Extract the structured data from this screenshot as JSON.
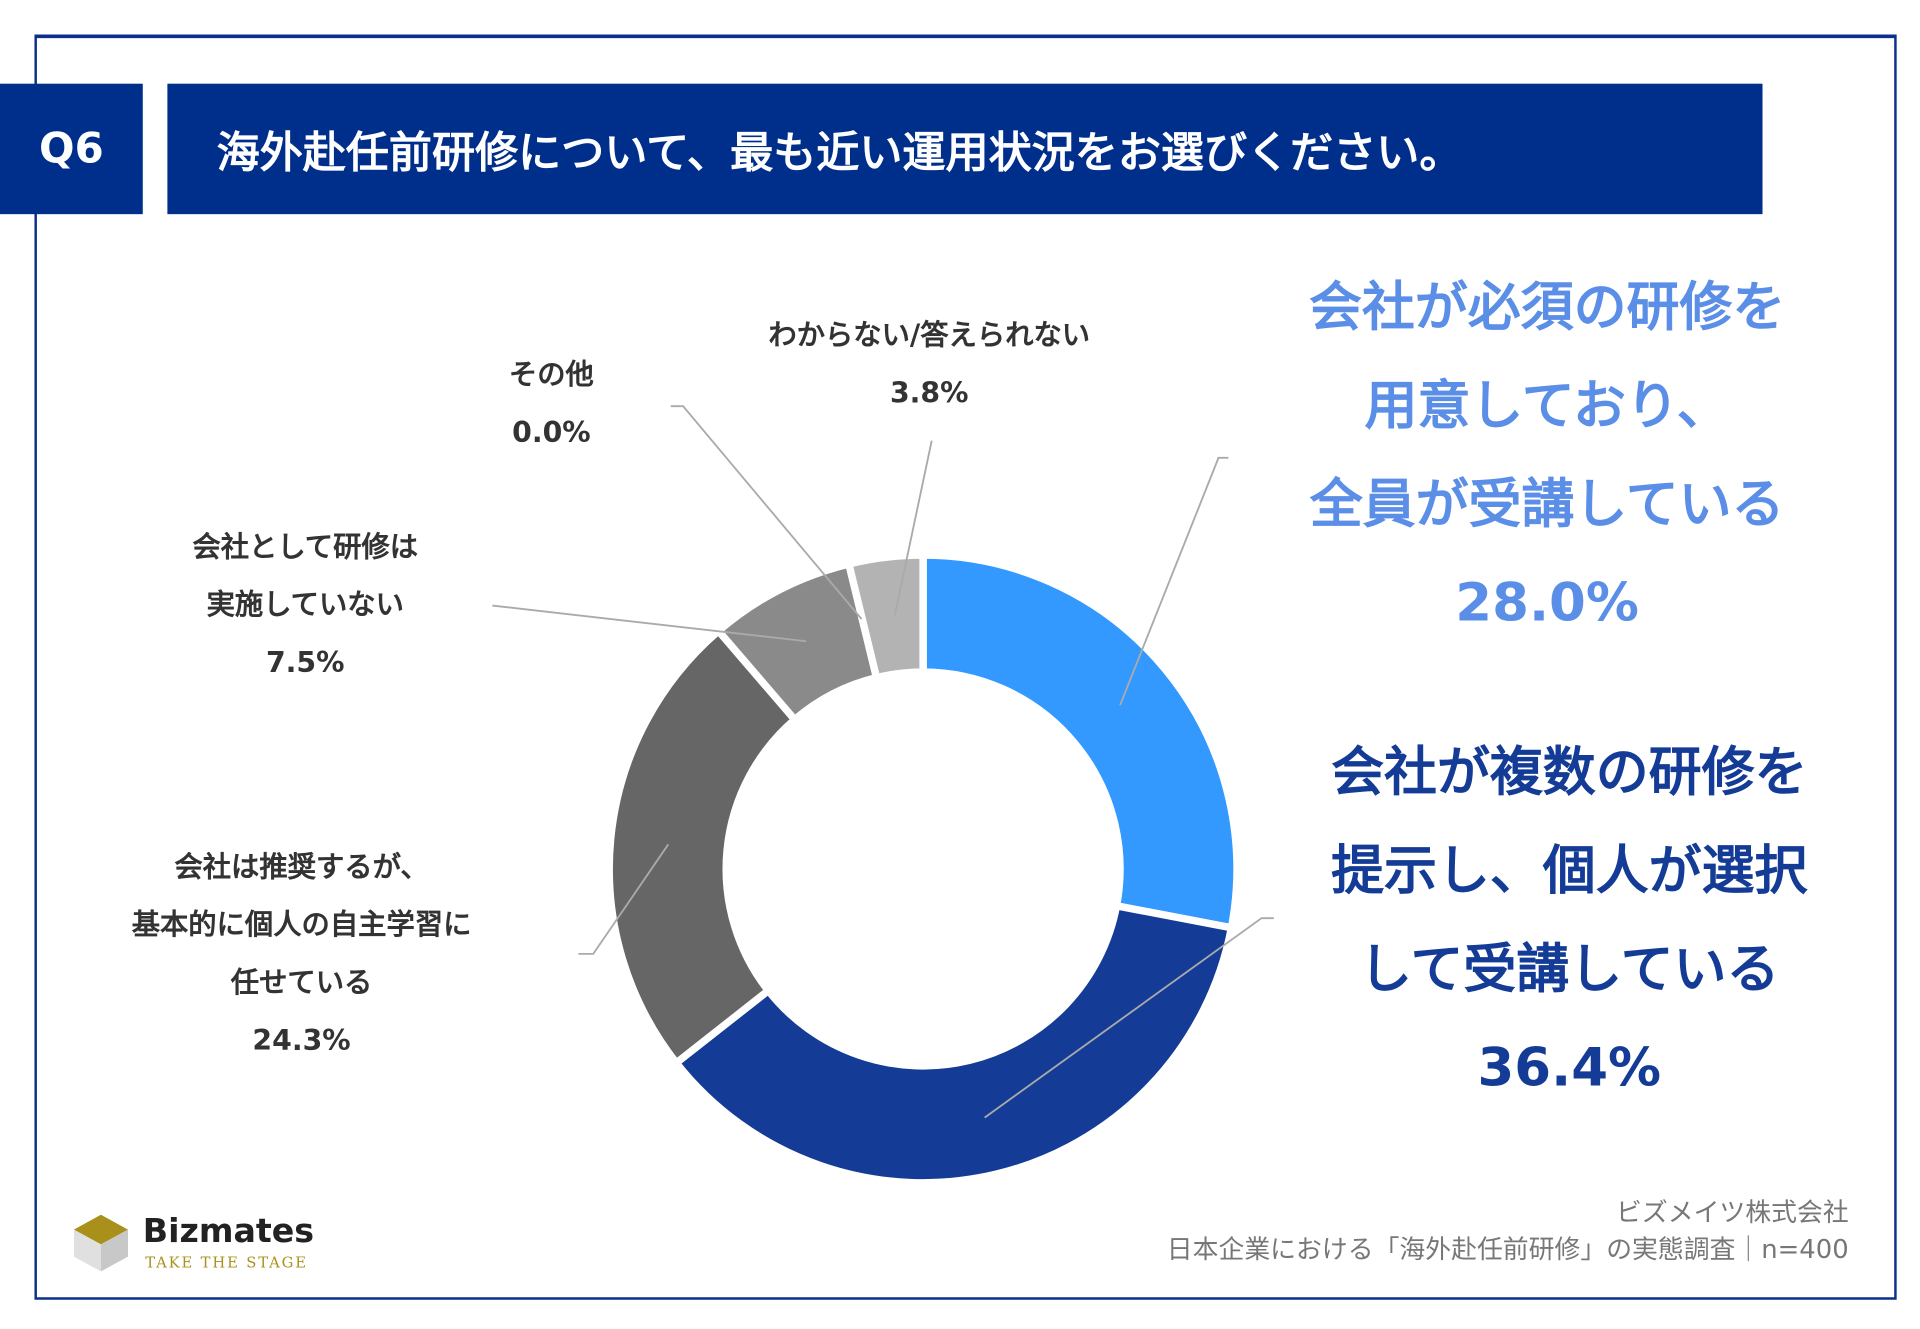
{
  "question_number": "Q6",
  "title": "海外赴任前研修について、最も近い運用状況をお選びください。",
  "chart_data": {
    "type": "pie",
    "donut": true,
    "start": "top, clockwise",
    "slices": [
      {
        "label_lines": [
          "会社が必須の研修を",
          "用意しており、",
          "全員が受講している"
        ],
        "value": 28.0,
        "display": "28.0%",
        "color": "#3399ff",
        "label_color": "#5b8ee6"
      },
      {
        "label_lines": [
          "会社が複数の研修を",
          "提示し、個人が選択",
          "して受講している"
        ],
        "value": 36.4,
        "display": "36.4%",
        "color": "#143c96",
        "label_color": "#143c96"
      },
      {
        "label_lines": [
          "会社は推奨するが、",
          "基本的に個人の自主学習に",
          "任せている"
        ],
        "value": 24.3,
        "display": "24.3%",
        "color": "#666666",
        "label_color": "#333333"
      },
      {
        "label_lines": [
          "会社として研修は",
          "実施していない"
        ],
        "value": 7.5,
        "display": "7.5%",
        "color": "#8a8a8a",
        "label_color": "#333333"
      },
      {
        "label_lines": [
          "その他"
        ],
        "value": 0.0,
        "display": "0.0%",
        "color": "#999999",
        "label_color": "#333333"
      },
      {
        "label_lines": [
          "わからない/答えられない"
        ],
        "value": 3.8,
        "display": "3.8%",
        "color": "#b3b3b3",
        "label_color": "#333333"
      }
    ]
  },
  "source": {
    "company": "ビズメイツ株式会社",
    "survey": "日本企業における「海外赴任前研修」の実態調査｜n=400"
  },
  "logo": {
    "name": "Bizmates",
    "tagline": "TAKE THE STAGE"
  }
}
